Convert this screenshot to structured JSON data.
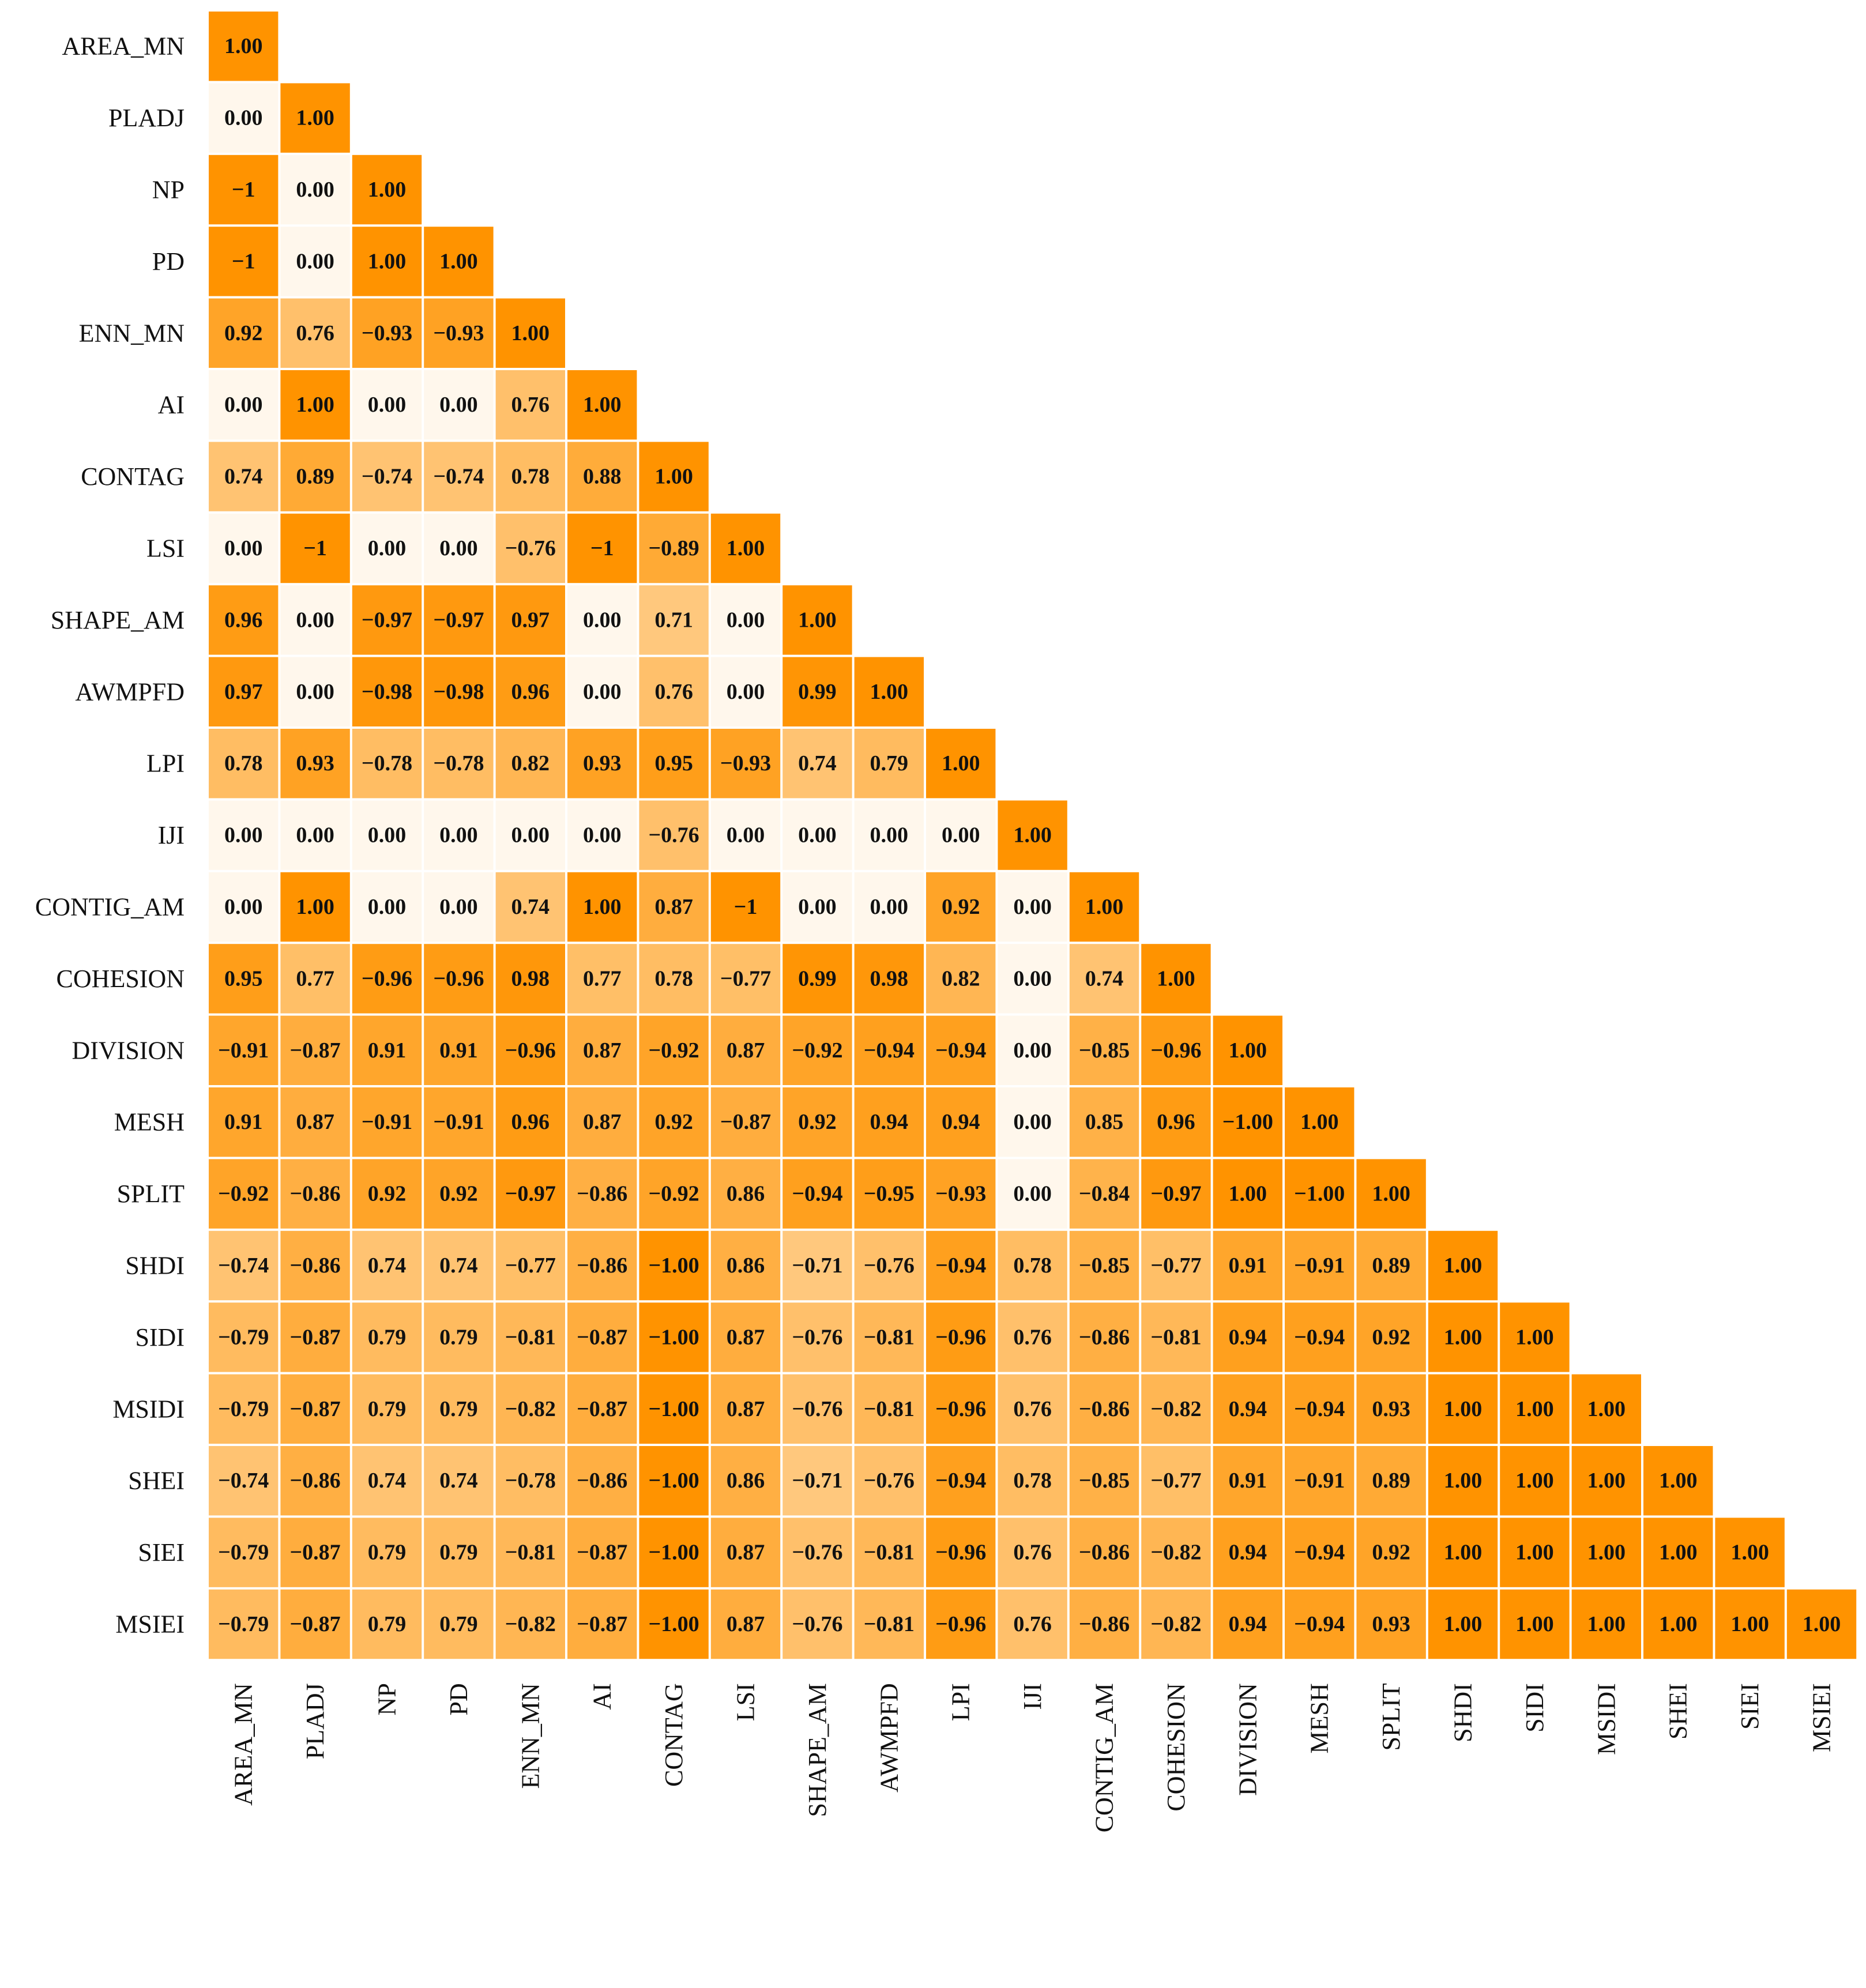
{
  "chart_data": {
    "type": "heatmap",
    "title": "",
    "labels": [
      "AREA_MN",
      "PLADJ",
      "NP",
      "PD",
      "ENN_MN",
      "AI",
      "CONTAG",
      "LSI",
      "SHAPE_AM",
      "AWMPFD",
      "LPI",
      "IJI",
      "CONTIG_AM",
      "COHESION",
      "DIVISION",
      "MESH",
      "SPLIT",
      "SHDI",
      "SIDI",
      "MSIDI",
      "SHEI",
      "SIEI",
      "MSIEI"
    ],
    "cells": [
      [
        "1.00"
      ],
      [
        "0.00",
        "1.00"
      ],
      [
        "−1",
        "0.00",
        "1.00"
      ],
      [
        "−1",
        "0.00",
        "1.00",
        "1.00"
      ],
      [
        "0.92",
        "0.76",
        "−0.93",
        "−0.93",
        "1.00"
      ],
      [
        "0.00",
        "1.00",
        "0.00",
        "0.00",
        "0.76",
        "1.00"
      ],
      [
        "0.74",
        "0.89",
        "−0.74",
        "−0.74",
        "0.78",
        "0.88",
        "1.00"
      ],
      [
        "0.00",
        "−1",
        "0.00",
        "0.00",
        "−0.76",
        "−1",
        "−0.89",
        "1.00"
      ],
      [
        "0.96",
        "0.00",
        "−0.97",
        "−0.97",
        "0.97",
        "0.00",
        "0.71",
        "0.00",
        "1.00"
      ],
      [
        "0.97",
        "0.00",
        "−0.98",
        "−0.98",
        "0.96",
        "0.00",
        "0.76",
        "0.00",
        "0.99",
        "1.00"
      ],
      [
        "0.78",
        "0.93",
        "−0.78",
        "−0.78",
        "0.82",
        "0.93",
        "0.95",
        "−0.93",
        "0.74",
        "0.79",
        "1.00"
      ],
      [
        "0.00",
        "0.00",
        "0.00",
        "0.00",
        "0.00",
        "0.00",
        "−0.76",
        "0.00",
        "0.00",
        "0.00",
        "0.00",
        "1.00"
      ],
      [
        "0.00",
        "1.00",
        "0.00",
        "0.00",
        "0.74",
        "1.00",
        "0.87",
        "−1",
        "0.00",
        "0.00",
        "0.92",
        "0.00",
        "1.00"
      ],
      [
        "0.95",
        "0.77",
        "−0.96",
        "−0.96",
        "0.98",
        "0.77",
        "0.78",
        "−0.77",
        "0.99",
        "0.98",
        "0.82",
        "0.00",
        "0.74",
        "1.00"
      ],
      [
        "−0.91",
        "−0.87",
        "0.91",
        "0.91",
        "−0.96",
        "0.87",
        "−0.92",
        "0.87",
        "−0.92",
        "−0.94",
        "−0.94",
        "0.00",
        "−0.85",
        "−0.96",
        "1.00"
      ],
      [
        "0.91",
        "0.87",
        "−0.91",
        "−0.91",
        "0.96",
        "0.87",
        "0.92",
        "−0.87",
        "0.92",
        "0.94",
        "0.94",
        "0.00",
        "0.85",
        "0.96",
        "−1.00",
        "1.00"
      ],
      [
        "−0.92",
        "−0.86",
        "0.92",
        "0.92",
        "−0.97",
        "−0.86",
        "−0.92",
        "0.86",
        "−0.94",
        "−0.95",
        "−0.93",
        "0.00",
        "−0.84",
        "−0.97",
        "1.00",
        "−1.00",
        "1.00"
      ],
      [
        "−0.74",
        "−0.86",
        "0.74",
        "0.74",
        "−0.77",
        "−0.86",
        "−1.00",
        "0.86",
        "−0.71",
        "−0.76",
        "−0.94",
        "0.78",
        "−0.85",
        "−0.77",
        "0.91",
        "−0.91",
        "0.89",
        "1.00"
      ],
      [
        "−0.79",
        "−0.87",
        "0.79",
        "0.79",
        "−0.81",
        "−0.87",
        "−1.00",
        "0.87",
        "−0.76",
        "−0.81",
        "−0.96",
        "0.76",
        "−0.86",
        "−0.81",
        "0.94",
        "−0.94",
        "0.92",
        "1.00",
        "1.00"
      ],
      [
        "−0.79",
        "−0.87",
        "0.79",
        "0.79",
        "−0.82",
        "−0.87",
        "−1.00",
        "0.87",
        "−0.76",
        "−0.81",
        "−0.96",
        "0.76",
        "−0.86",
        "−0.82",
        "0.94",
        "−0.94",
        "0.93",
        "1.00",
        "1.00",
        "1.00"
      ],
      [
        "−0.74",
        "−0.86",
        "0.74",
        "0.74",
        "−0.78",
        "−0.86",
        "−1.00",
        "0.86",
        "−0.71",
        "−0.76",
        "−0.94",
        "0.78",
        "−0.85",
        "−0.77",
        "0.91",
        "−0.91",
        "0.89",
        "1.00",
        "1.00",
        "1.00",
        "1.00"
      ],
      [
        "−0.79",
        "−0.87",
        "0.79",
        "0.79",
        "−0.81",
        "−0.87",
        "−1.00",
        "0.87",
        "−0.76",
        "−0.81",
        "−0.96",
        "0.76",
        "−0.86",
        "−0.82",
        "0.94",
        "−0.94",
        "0.92",
        "1.00",
        "1.00",
        "1.00",
        "1.00",
        "1.00"
      ],
      [
        "−0.79",
        "−0.87",
        "0.79",
        "0.79",
        "−0.82",
        "−0.87",
        "−1.00",
        "0.87",
        "−0.76",
        "−0.81",
        "−0.96",
        "0.76",
        "−0.86",
        "−0.82",
        "0.94",
        "−0.94",
        "0.93",
        "1.00",
        "1.00",
        "1.00",
        "1.00",
        "1.00",
        "1.00"
      ]
    ],
    "colorscale": {
      "low": "#fff7ec",
      "high": "#ff9300"
    },
    "legend": "none",
    "grid": false
  }
}
